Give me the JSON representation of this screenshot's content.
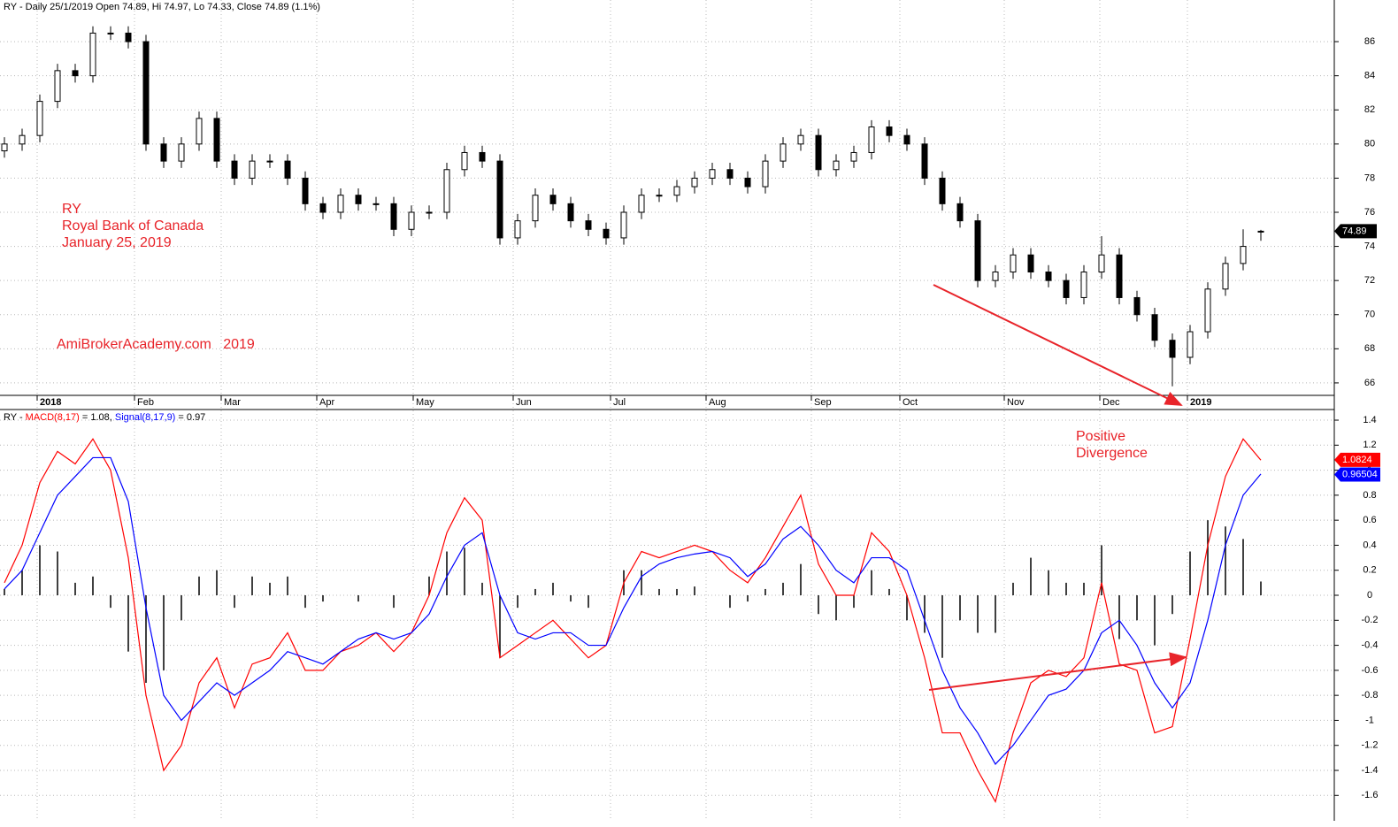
{
  "chart_data": [
    {
      "type": "candlestick",
      "title": "RY - Daily 25/1/2019 Open 74.89, Hi 74.97, Lo 74.33, Close 74.89 (1.1%)",
      "annotations": [
        "RY",
        "Royal Bank of Canada",
        "January 25, 2019",
        "AmiBrokerAcademy.com   2019"
      ],
      "open": [
        79.6,
        80,
        80.5,
        82.5,
        84.3,
        84,
        86.5,
        86.5,
        86,
        80,
        79,
        80,
        81.5,
        79,
        78,
        79,
        79,
        78,
        76.5,
        76,
        77,
        76.5,
        76.5,
        75,
        76,
        76,
        78.5,
        79.5,
        79,
        74.5,
        75.5,
        77,
        76.5,
        75.5,
        75,
        74.5,
        76,
        77,
        77,
        77.5,
        78,
        78.5,
        78,
        77.5,
        79,
        80,
        80.5,
        78.5,
        79,
        79.5,
        81,
        80.5,
        80,
        78,
        76.5,
        75.5,
        72,
        72.5,
        73.5,
        72.5,
        72,
        71,
        72.5,
        73.5,
        71,
        70,
        68.5,
        67.5,
        69,
        71.5,
        73,
        74.89
      ],
      "high": [
        80.4,
        80.9,
        82.9,
        84.7,
        84.7,
        86.9,
        86.9,
        86.9,
        86.4,
        80.4,
        80.4,
        81.9,
        81.9,
        79.4,
        79.4,
        79.4,
        79.4,
        78.4,
        76.9,
        77.4,
        77.4,
        76.9,
        76.9,
        76.4,
        76.4,
        78.9,
        79.9,
        79.9,
        79.4,
        75.9,
        77.4,
        77.4,
        76.9,
        75.9,
        75.4,
        76.4,
        77.4,
        77.4,
        77.9,
        78.4,
        78.9,
        78.9,
        78.4,
        79.4,
        80.4,
        80.9,
        80.9,
        79.4,
        79.9,
        81.4,
        81.4,
        80.9,
        80.4,
        78.4,
        76.9,
        75.9,
        72.9,
        73.9,
        73.9,
        72.9,
        72.4,
        72.9,
        74.6,
        73.9,
        71.4,
        70.4,
        68.9,
        69.4,
        71.9,
        73.4,
        75.0,
        74.97
      ],
      "low": [
        79.2,
        79.6,
        80.1,
        82.1,
        83.6,
        83.6,
        86.1,
        85.6,
        79.6,
        78.6,
        78.6,
        79.6,
        78.6,
        77.6,
        77.6,
        78.6,
        77.6,
        76.1,
        75.6,
        75.6,
        76.1,
        76.1,
        74.6,
        74.6,
        75.6,
        75.6,
        78.1,
        78.6,
        74.1,
        74.1,
        75.1,
        76.1,
        75.1,
        74.6,
        74.1,
        74.1,
        75.6,
        76.6,
        76.6,
        77.1,
        77.6,
        77.6,
        77.1,
        77.1,
        78.6,
        79.6,
        78.1,
        78.1,
        78.6,
        79.1,
        80.1,
        79.6,
        77.6,
        76.1,
        75.1,
        71.6,
        71.6,
        72.1,
        72.1,
        71.6,
        70.6,
        70.6,
        72.1,
        70.6,
        69.6,
        68.1,
        65.8,
        67.1,
        68.6,
        71.1,
        72.6,
        74.33
      ],
      "close": [
        80,
        80.5,
        82.5,
        84.3,
        84,
        86.5,
        86.5,
        86,
        80,
        79,
        80,
        81.5,
        79,
        78,
        79,
        79,
        78,
        76.5,
        76,
        77,
        76.5,
        76.5,
        75,
        76,
        76,
        78.5,
        79.5,
        79,
        74.5,
        75.5,
        77,
        76.5,
        75.5,
        75,
        74.5,
        76,
        77,
        77,
        77.5,
        78,
        78.5,
        78,
        77.5,
        79,
        80,
        80.5,
        78.5,
        79,
        79.5,
        81,
        80.5,
        80,
        78,
        76.5,
        75.5,
        72,
        72.5,
        73.5,
        72.5,
        72,
        71,
        72.5,
        73.5,
        71,
        70,
        68.5,
        67.5,
        69,
        71.5,
        73,
        74,
        74.89
      ],
      "up_color": "#ffffff",
      "down_color": "#000000",
      "last_value": 74.89,
      "xlim": [
        -0.25,
        75.15
      ],
      "xticks": [
        {
          "value": 1.85,
          "label": "2018"
        },
        {
          "value": 7.35,
          "label": "Feb"
        },
        {
          "value": 12.25,
          "label": "Mar"
        },
        {
          "value": 17.65,
          "label": "Apr"
        },
        {
          "value": 23.1,
          "label": "May"
        },
        {
          "value": 28.75,
          "label": "Jun"
        },
        {
          "value": 34.25,
          "label": "Jul"
        },
        {
          "value": 39.65,
          "label": "Aug"
        },
        {
          "value": 45.6,
          "label": "Sep"
        },
        {
          "value": 50.6,
          "label": "Oct"
        },
        {
          "value": 56.5,
          "label": "Nov"
        },
        {
          "value": 61.9,
          "label": "Dec"
        },
        {
          "value": 66.85,
          "label": "2019"
        }
      ],
      "ylim": [
        65.27,
        88.44
      ],
      "yticks": [
        66,
        68,
        70,
        72,
        74,
        76,
        78,
        80,
        82,
        84,
        86
      ],
      "grid": true
    },
    {
      "type": "macd",
      "title_parts": [
        "RY - ",
        "MACD(8,17)",
        " = 1.08, ",
        "Signal(8,17,9)",
        " = 0.97"
      ],
      "annotations": [
        "Positive",
        "Divergence"
      ],
      "xlim": [
        -0.25,
        75.15
      ],
      "ylim": [
        -1.803,
        1.485
      ],
      "yticks": [
        -1.6,
        -1.4,
        -1.2,
        -1.0,
        -0.8,
        -0.6,
        -0.4,
        -0.2,
        0.0,
        0.2,
        0.4,
        0.6,
        0.8,
        1.0,
        1.2,
        1.4
      ],
      "grid": true,
      "series": [
        {
          "name": "Histogram",
          "style": "histogram",
          "color": "#000000",
          "values": [
            0.05,
            0.2,
            0.4,
            0.35,
            0.1,
            0.15,
            -0.1,
            -0.45,
            -0.7,
            -0.6,
            -0.2,
            0.15,
            0.2,
            -0.1,
            0.15,
            0.1,
            0.15,
            -0.1,
            -0.05,
            0,
            -0.05,
            0,
            -0.1,
            0,
            0.15,
            0.35,
            0.38,
            0.1,
            -0.5,
            -0.1,
            0.05,
            0.1,
            -0.05,
            -0.1,
            0,
            0.2,
            0.2,
            0.05,
            0.05,
            0.07,
            0,
            -0.1,
            -0.05,
            0.05,
            0.1,
            0.25,
            -0.15,
            -0.2,
            -0.1,
            0.2,
            0.05,
            -0.2,
            -0.3,
            -0.5,
            -0.2,
            -0.3,
            -0.3,
            0.1,
            0.3,
            0.2,
            0.1,
            0.1,
            0.4,
            -0.35,
            -0.2,
            -0.4,
            -0.15,
            0.35,
            0.6,
            0.55,
            0.45,
            0.11
          ]
        },
        {
          "name": "MACD",
          "style": "line",
          "color": "#ff0000",
          "last_value": 1.0824,
          "values": [
            0.1,
            0.4,
            0.9,
            1.15,
            1.05,
            1.25,
            1.0,
            0.3,
            -0.8,
            -1.4,
            -1.2,
            -0.7,
            -0.5,
            -0.9,
            -0.55,
            -0.5,
            -0.3,
            -0.6,
            -0.6,
            -0.45,
            -0.4,
            -0.3,
            -0.45,
            -0.3,
            0.0,
            0.5,
            0.78,
            0.6,
            -0.5,
            -0.4,
            -0.3,
            -0.2,
            -0.35,
            -0.5,
            -0.4,
            0.1,
            0.35,
            0.3,
            0.35,
            0.4,
            0.35,
            0.2,
            0.1,
            0.3,
            0.55,
            0.8,
            0.25,
            0.0,
            0.0,
            0.5,
            0.35,
            0.0,
            -0.5,
            -1.1,
            -1.1,
            -1.4,
            -1.65,
            -1.1,
            -0.7,
            -0.6,
            -0.65,
            -0.5,
            0.1,
            -0.55,
            -0.6,
            -1.1,
            -1.05,
            -0.35,
            0.4,
            0.95,
            1.25,
            1.08
          ]
        },
        {
          "name": "Signal",
          "style": "line",
          "color": "#0000ff",
          "last_value": 0.96504,
          "values": [
            0.05,
            0.2,
            0.5,
            0.8,
            0.95,
            1.1,
            1.1,
            0.75,
            -0.1,
            -0.8,
            -1.0,
            -0.85,
            -0.7,
            -0.8,
            -0.7,
            -0.6,
            -0.45,
            -0.5,
            -0.55,
            -0.45,
            -0.35,
            -0.3,
            -0.35,
            -0.3,
            -0.15,
            0.15,
            0.4,
            0.5,
            0.0,
            -0.3,
            -0.35,
            -0.3,
            -0.3,
            -0.4,
            -0.4,
            -0.1,
            0.15,
            0.25,
            0.3,
            0.33,
            0.35,
            0.3,
            0.15,
            0.25,
            0.45,
            0.55,
            0.4,
            0.2,
            0.1,
            0.3,
            0.3,
            0.2,
            -0.2,
            -0.6,
            -0.9,
            -1.1,
            -1.35,
            -1.2,
            -1.0,
            -0.8,
            -0.75,
            -0.6,
            -0.3,
            -0.2,
            -0.4,
            -0.7,
            -0.9,
            -0.7,
            -0.2,
            0.4,
            0.8,
            0.97
          ]
        }
      ]
    }
  ]
}
